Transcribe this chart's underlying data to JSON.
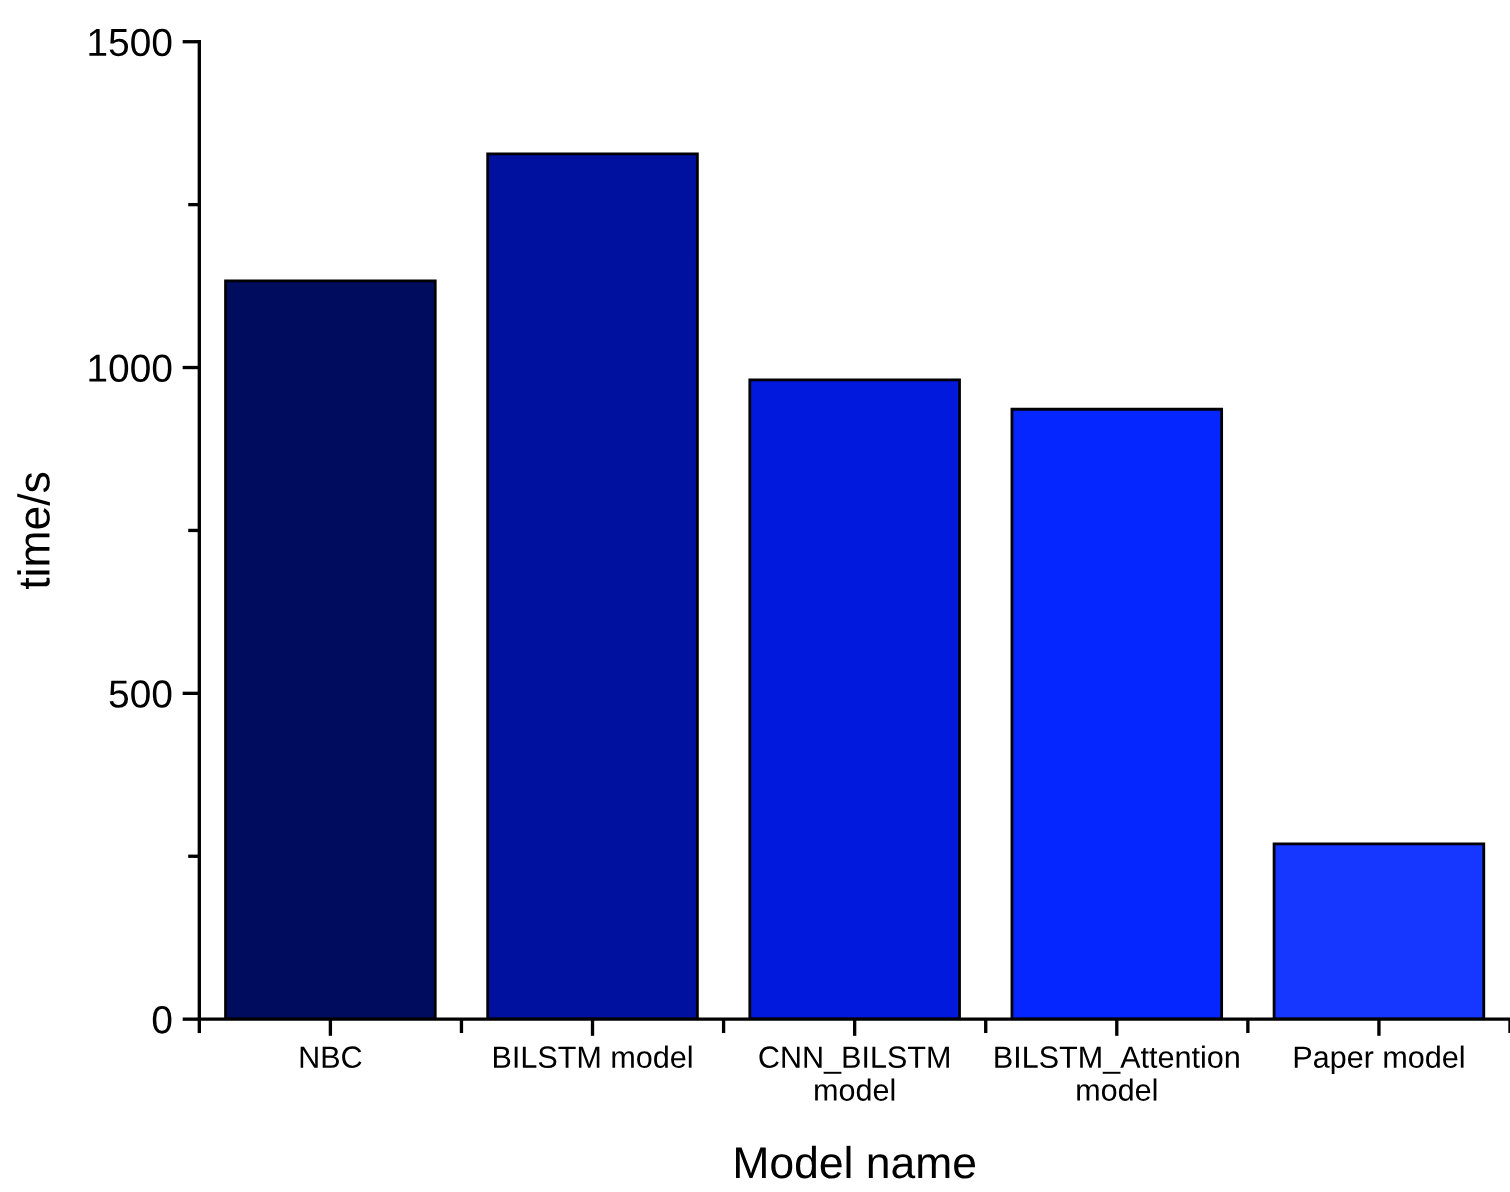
{
  "chart_data": {
    "type": "bar",
    "xlabel": "Model name",
    "ylabel": "time/s",
    "categories": [
      "NBC",
      "BILSTM model",
      "CNN_BILSTM\nmodel",
      "BILSTM_Attention\nmodel",
      "Paper model"
    ],
    "values": [
      1133,
      1328,
      981,
      936,
      269
    ],
    "colors": [
      "#000c5e",
      "#0011a0",
      "#0019dc",
      "#0626ff",
      "#1537ff"
    ],
    "ylim": [
      0,
      1500
    ],
    "yticks": [
      0,
      {
        "value": 250,
        "label": null
      },
      500,
      {
        "value": 750,
        "label": null
      },
      1000,
      {
        "value": 1250,
        "label": null
      },
      1500
    ],
    "grid": false
  }
}
